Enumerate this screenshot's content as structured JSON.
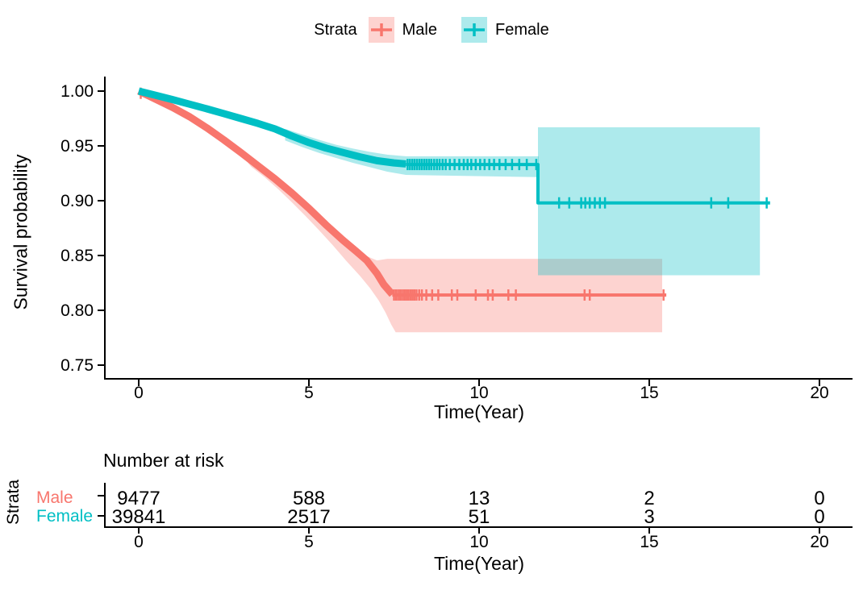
{
  "chart_data": {
    "type": "km_survival_step",
    "title": "",
    "legend": {
      "title": "Strata",
      "position": "top"
    },
    "xlabel": "Time(Year)",
    "ylabel": "Survival probability",
    "xlim": [
      0,
      21
    ],
    "ylim": [
      0.75,
      1.0
    ],
    "grid": false,
    "x_ticks": [
      0,
      5,
      10,
      15,
      20
    ],
    "y_ticks": [
      {
        "v": 1.0,
        "label": "1.00"
      },
      {
        "v": 0.95,
        "label": "0.95"
      },
      {
        "v": 0.9,
        "label": "0.90"
      },
      {
        "v": 0.85,
        "label": "0.85"
      },
      {
        "v": 0.8,
        "label": "0.80"
      },
      {
        "v": 0.75,
        "label": "0.75"
      }
    ],
    "series": [
      {
        "name": "Male",
        "color": "#F8766D",
        "fill": "rgba(248,118,109,0.32)",
        "line_segments": [
          {
            "width": 9,
            "points": [
              [
                0,
                1.0
              ],
              [
                0.3,
                0.9955
              ],
              [
                0.6,
                0.991
              ],
              [
                1,
                0.985
              ],
              [
                1.5,
                0.9765
              ],
              [
                2,
                0.9665
              ],
              [
                2.5,
                0.9555
              ],
              [
                3,
                0.944
              ],
              [
                3.5,
                0.932
              ],
              [
                4,
                0.92
              ],
              [
                4.5,
                0.907
              ],
              [
                5,
                0.893
              ],
              [
                5.5,
                0.878
              ],
              [
                6,
                0.864
              ],
              [
                6.4,
                0.8535
              ],
              [
                6.7,
                0.8455
              ],
              [
                7,
                0.8335
              ],
              [
                7.2,
                0.8235
              ],
              [
                7.45,
                0.8145
              ]
            ]
          },
          {
            "width": 4,
            "points": [
              [
                7.45,
                0.814
              ],
              [
                15.5,
                0.814
              ]
            ]
          }
        ],
        "censors": [
          [
            0.06,
            0.998
          ],
          [
            7.5,
            0.814
          ],
          [
            7.56,
            0.814
          ],
          [
            7.62,
            0.814
          ],
          [
            7.68,
            0.814
          ],
          [
            7.74,
            0.814
          ],
          [
            7.8,
            0.814
          ],
          [
            7.86,
            0.814
          ],
          [
            7.92,
            0.814
          ],
          [
            7.98,
            0.814
          ],
          [
            8.04,
            0.814
          ],
          [
            8.1,
            0.814
          ],
          [
            8.16,
            0.814
          ],
          [
            8.24,
            0.814
          ],
          [
            8.32,
            0.814
          ],
          [
            8.45,
            0.814
          ],
          [
            8.62,
            0.814
          ],
          [
            8.8,
            0.814
          ],
          [
            9.2,
            0.814
          ],
          [
            9.36,
            0.814
          ],
          [
            9.9,
            0.814
          ],
          [
            10.26,
            0.814
          ],
          [
            10.4,
            0.814
          ],
          [
            10.86,
            0.814
          ],
          [
            11.08,
            0.814
          ],
          [
            13.1,
            0.814
          ],
          [
            13.25,
            0.814
          ],
          [
            15.42,
            0.814
          ]
        ],
        "ci_polygons": [
          [
            [
              3.2,
              0.94
            ],
            [
              3.6,
              0.931
            ],
            [
              4,
              0.9215
            ],
            [
              4.4,
              0.9115
            ],
            [
              4.8,
              0.9005
            ],
            [
              5.2,
              0.889
            ],
            [
              5.6,
              0.877
            ],
            [
              6,
              0.8665
            ],
            [
              6.4,
              0.8565
            ],
            [
              6.7,
              0.8495
            ],
            [
              7,
              0.8455
            ],
            [
              7.3,
              0.847
            ],
            [
              15.38,
              0.847
            ],
            [
              15.38,
              0.78
            ],
            [
              7.55,
              0.78
            ],
            [
              7.42,
              0.787
            ],
            [
              7.25,
              0.798
            ],
            [
              7.05,
              0.809
            ],
            [
              6.8,
              0.82
            ],
            [
              6.5,
              0.8315
            ],
            [
              6.1,
              0.845
            ],
            [
              5.7,
              0.8595
            ],
            [
              5.3,
              0.873
            ],
            [
              4.9,
              0.886
            ],
            [
              4.5,
              0.8985
            ],
            [
              4.1,
              0.9105
            ],
            [
              3.7,
              0.9215
            ],
            [
              3.3,
              0.931
            ],
            [
              3.2,
              0.935
            ]
          ]
        ]
      },
      {
        "name": "Female",
        "color": "#00BFC4",
        "fill": "rgba(0,191,196,0.32)",
        "line_segments": [
          {
            "width": 9,
            "points": [
              [
                0,
                1.0
              ],
              [
                0.5,
                0.9962
              ],
              [
                1,
                0.9922
              ],
              [
                1.5,
                0.988
              ],
              [
                2,
                0.9838
              ],
              [
                2.5,
                0.9795
              ],
              [
                3,
                0.975
              ],
              [
                3.5,
                0.9705
              ],
              [
                4,
                0.9655
              ],
              [
                4.5,
                0.959
              ],
              [
                5,
                0.953
              ],
              [
                5.5,
                0.948
              ],
              [
                6,
                0.944
              ],
              [
                6.5,
                0.94
              ],
              [
                7,
                0.9365
              ],
              [
                7.5,
                0.9345
              ],
              [
                7.85,
                0.9335
              ]
            ]
          },
          {
            "width": 4,
            "points": [
              [
                7.85,
                0.933
              ],
              [
                11.73,
                0.933
              ],
              [
                11.73,
                0.898
              ],
              [
                18.55,
                0.898
              ]
            ]
          }
        ],
        "censors": [
          [
            7.9,
            0.933
          ],
          [
            7.97,
            0.933
          ],
          [
            8.04,
            0.933
          ],
          [
            8.11,
            0.933
          ],
          [
            8.18,
            0.933
          ],
          [
            8.25,
            0.933
          ],
          [
            8.32,
            0.933
          ],
          [
            8.39,
            0.933
          ],
          [
            8.46,
            0.933
          ],
          [
            8.53,
            0.933
          ],
          [
            8.6,
            0.933
          ],
          [
            8.68,
            0.933
          ],
          [
            8.76,
            0.933
          ],
          [
            8.84,
            0.933
          ],
          [
            8.93,
            0.933
          ],
          [
            9.02,
            0.933
          ],
          [
            9.14,
            0.933
          ],
          [
            9.28,
            0.933
          ],
          [
            9.42,
            0.933
          ],
          [
            9.55,
            0.933
          ],
          [
            9.66,
            0.933
          ],
          [
            9.77,
            0.933
          ],
          [
            9.9,
            0.933
          ],
          [
            10.03,
            0.933
          ],
          [
            10.16,
            0.933
          ],
          [
            10.3,
            0.933
          ],
          [
            10.44,
            0.933
          ],
          [
            10.6,
            0.933
          ],
          [
            10.78,
            0.933
          ],
          [
            10.97,
            0.933
          ],
          [
            11.18,
            0.933
          ],
          [
            11.4,
            0.933
          ],
          [
            11.68,
            0.933
          ],
          [
            12.35,
            0.898
          ],
          [
            12.65,
            0.898
          ],
          [
            13.0,
            0.898
          ],
          [
            13.12,
            0.898
          ],
          [
            13.25,
            0.898
          ],
          [
            13.4,
            0.898
          ],
          [
            13.55,
            0.898
          ],
          [
            13.7,
            0.898
          ],
          [
            16.82,
            0.898
          ],
          [
            17.32,
            0.898
          ],
          [
            18.45,
            0.898
          ]
        ],
        "ci_polygons": [
          [
            [
              4.3,
              0.9655
            ],
            [
              4.8,
              0.9605
            ],
            [
              5.3,
              0.9555
            ],
            [
              5.8,
              0.951
            ],
            [
              6.3,
              0.9475
            ],
            [
              6.8,
              0.9445
            ],
            [
              7.3,
              0.942
            ],
            [
              7.85,
              0.9405
            ],
            [
              11.75,
              0.9405
            ],
            [
              11.75,
              0.9215
            ],
            [
              7.85,
              0.9235
            ],
            [
              7.3,
              0.9265
            ],
            [
              6.8,
              0.9305
            ],
            [
              6.3,
              0.9345
            ],
            [
              5.8,
              0.939
            ],
            [
              5.3,
              0.9435
            ],
            [
              4.8,
              0.949
            ],
            [
              4.3,
              0.955
            ]
          ],
          [
            [
              11.73,
              0.967
            ],
            [
              18.25,
              0.967
            ],
            [
              18.25,
              0.832
            ],
            [
              11.73,
              0.832
            ]
          ]
        ]
      }
    ]
  },
  "risk_table": {
    "title": "Number at risk",
    "ylabel": "Strata",
    "xlabel": "Time(Year)",
    "x_ticks": [
      0,
      5,
      10,
      15,
      20
    ],
    "rows": [
      {
        "label": "Male",
        "color": "#F8766D",
        "values": [
          "9477",
          "588",
          "13",
          "2",
          "0"
        ]
      },
      {
        "label": "Female",
        "color": "#00BFC4",
        "values": [
          "39841",
          "2517",
          "51",
          "3",
          "0"
        ]
      }
    ]
  }
}
